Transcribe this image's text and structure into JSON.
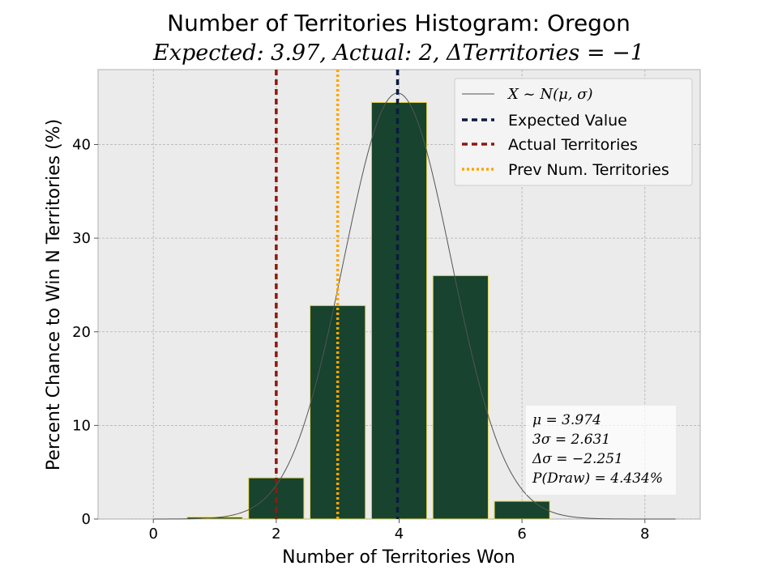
{
  "chart_data": {
    "type": "bar",
    "title": "Number of Territories Histogram: Oregon",
    "subtitle": "Expected: 3.97, Actual: 2, ΔTerritories = −1",
    "xlabel": "Number of Territories Won",
    "ylabel": "Percent Chance to Win N Territories (%)",
    "xlim": [
      -0.9,
      8.9
    ],
    "ylim": [
      0,
      48
    ],
    "x_ticks": [
      0,
      2,
      4,
      6,
      8
    ],
    "y_ticks": [
      0,
      10,
      20,
      30,
      40
    ],
    "grid": true,
    "categories": [
      1,
      2,
      3,
      4,
      5,
      6
    ],
    "values": [
      0.2,
      4.4,
      22.8,
      44.5,
      26.0,
      1.9
    ],
    "bar_color": "#17432f",
    "bar_edge_color": "#e8d84a",
    "normal_curve": {
      "mu": 3.974,
      "sigma": 0.877,
      "peak_percent": 45.5,
      "color": "#555555"
    },
    "vlines": [
      {
        "name": "Expected Value",
        "x": 3.974,
        "color": "#0b1a40",
        "style": "dashed"
      },
      {
        "name": "Actual Territories",
        "x": 2,
        "color": "#8b1a0e",
        "style": "dashed"
      },
      {
        "name": "Prev Num. Territories",
        "x": 3,
        "color": "#ffa500",
        "style": "dotted"
      }
    ],
    "legend": {
      "position": "top-right",
      "entries": [
        {
          "label": "X ~ N(μ, σ)",
          "kind": "curve"
        },
        {
          "label": "Expected Value",
          "kind": "vline-0"
        },
        {
          "label": "Actual Territories",
          "kind": "vline-1"
        },
        {
          "label": "Prev Num. Territories",
          "kind": "vline-2"
        }
      ]
    },
    "stats_box": {
      "position": "bottom-right",
      "lines": [
        "μ = 3.974",
        "3σ = 2.631",
        "Δσ = −2.251",
        "P(Draw) = 4.434%"
      ]
    }
  }
}
